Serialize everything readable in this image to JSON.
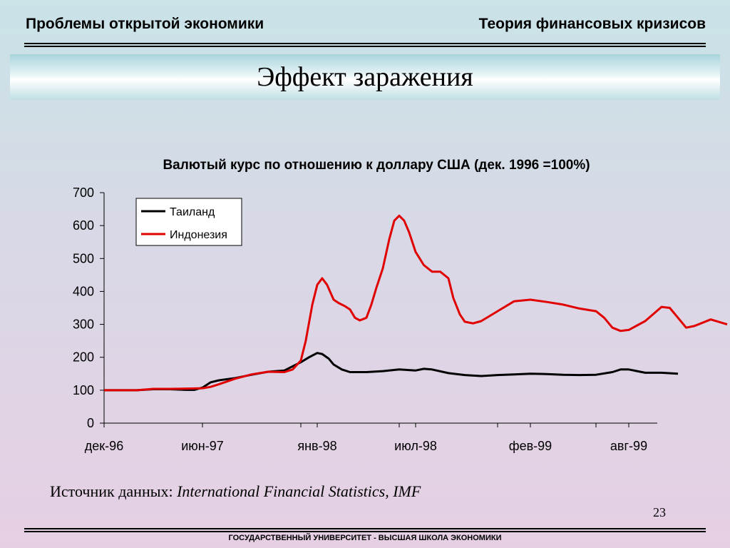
{
  "header": {
    "left": "Проблемы открытой экономики",
    "right": "Теория финансовых кризисов"
  },
  "slide_title": "Эффект заражения",
  "source": {
    "prefix": "Источник данных: ",
    "italic": "International Financial Statistics, IMF"
  },
  "page_number": "23",
  "footer": "ГОСУДАРСТВЕННЫЙ УНИВЕРСИТЕТ - ВЫСШАЯ ШКОЛА ЭКОНОМИКИ",
  "chart_data": {
    "type": "line",
    "title": "Валютый курс по отношению к доллару США (дек. 1996 =100%)",
    "xlabel": "",
    "ylabel": "",
    "ylim": [
      0,
      700
    ],
    "yticks": [
      0,
      100,
      200,
      300,
      400,
      500,
      600,
      700
    ],
    "x_tick_labels": [
      "дек-96",
      "июн-97",
      "янв-98",
      "июл-98",
      "фев-99",
      "авг-99"
    ],
    "x_tick_positions": [
      0,
      6,
      13,
      19,
      26,
      32
    ],
    "x_range": [
      0,
      35
    ],
    "grid": false,
    "legend_position": "top-left",
    "series": [
      {
        "name": "Таиланд",
        "color": "#000000",
        "points": [
          [
            0,
            100
          ],
          [
            1,
            100
          ],
          [
            2,
            100
          ],
          [
            3,
            103
          ],
          [
            4,
            103
          ],
          [
            5,
            101
          ],
          [
            5.5,
            101
          ],
          [
            6,
            108
          ],
          [
            6.5,
            124
          ],
          [
            7,
            130
          ],
          [
            8,
            137
          ],
          [
            9,
            147
          ],
          [
            10,
            156
          ],
          [
            11,
            160
          ],
          [
            12,
            185
          ],
          [
            12.5,
            200
          ],
          [
            13,
            213
          ],
          [
            13.3,
            210
          ],
          [
            13.7,
            196
          ],
          [
            14,
            178
          ],
          [
            14.5,
            163
          ],
          [
            15,
            155
          ],
          [
            16,
            155
          ],
          [
            17,
            158
          ],
          [
            18,
            163
          ],
          [
            19,
            160
          ],
          [
            19.5,
            165
          ],
          [
            20,
            163
          ],
          [
            21,
            152
          ],
          [
            22,
            146
          ],
          [
            23,
            143
          ],
          [
            24,
            146
          ],
          [
            25,
            148
          ],
          [
            26,
            150
          ],
          [
            27,
            149
          ],
          [
            28,
            147
          ],
          [
            29,
            146
          ],
          [
            30,
            147
          ],
          [
            31,
            155
          ],
          [
            31.5,
            163
          ],
          [
            32,
            163
          ],
          [
            33,
            153
          ],
          [
            34,
            153
          ],
          [
            35,
            150
          ]
        ]
      },
      {
        "name": "Индонезия",
        "color": "#e00000",
        "points": [
          [
            0,
            100
          ],
          [
            1,
            100
          ],
          [
            2,
            100
          ],
          [
            3,
            104
          ],
          [
            4,
            104
          ],
          [
            5,
            105
          ],
          [
            6,
            106
          ],
          [
            6.5,
            110
          ],
          [
            7,
            118
          ],
          [
            8,
            135
          ],
          [
            9,
            148
          ],
          [
            10,
            156
          ],
          [
            11,
            155
          ],
          [
            11.5,
            163
          ],
          [
            12,
            190
          ],
          [
            12.3,
            250
          ],
          [
            12.7,
            360
          ],
          [
            13,
            420
          ],
          [
            13.3,
            440
          ],
          [
            13.6,
            420
          ],
          [
            14,
            375
          ],
          [
            14.3,
            365
          ],
          [
            14.7,
            355
          ],
          [
            15,
            345
          ],
          [
            15.3,
            320
          ],
          [
            15.6,
            312
          ],
          [
            16,
            320
          ],
          [
            16.3,
            360
          ],
          [
            16.6,
            410
          ],
          [
            17,
            470
          ],
          [
            17.4,
            560
          ],
          [
            17.7,
            615
          ],
          [
            18,
            630
          ],
          [
            18.3,
            615
          ],
          [
            18.6,
            580
          ],
          [
            19,
            520
          ],
          [
            19.5,
            480
          ],
          [
            20,
            460
          ],
          [
            20.5,
            460
          ],
          [
            21,
            440
          ],
          [
            21.3,
            380
          ],
          [
            21.7,
            330
          ],
          [
            22,
            308
          ],
          [
            22.5,
            303
          ],
          [
            23,
            310
          ],
          [
            24,
            340
          ],
          [
            25,
            370
          ],
          [
            26,
            375
          ],
          [
            27,
            368
          ],
          [
            28,
            360
          ],
          [
            29,
            348
          ],
          [
            30,
            340
          ],
          [
            30.5,
            320
          ],
          [
            31,
            290
          ],
          [
            31.5,
            280
          ],
          [
            32,
            283
          ],
          [
            33,
            310
          ],
          [
            34,
            353
          ],
          [
            34.5,
            350
          ],
          [
            35,
            320
          ],
          [
            35.5,
            290
          ],
          [
            36,
            295
          ],
          [
            37,
            315
          ],
          [
            38,
            300
          ]
        ]
      }
    ]
  }
}
